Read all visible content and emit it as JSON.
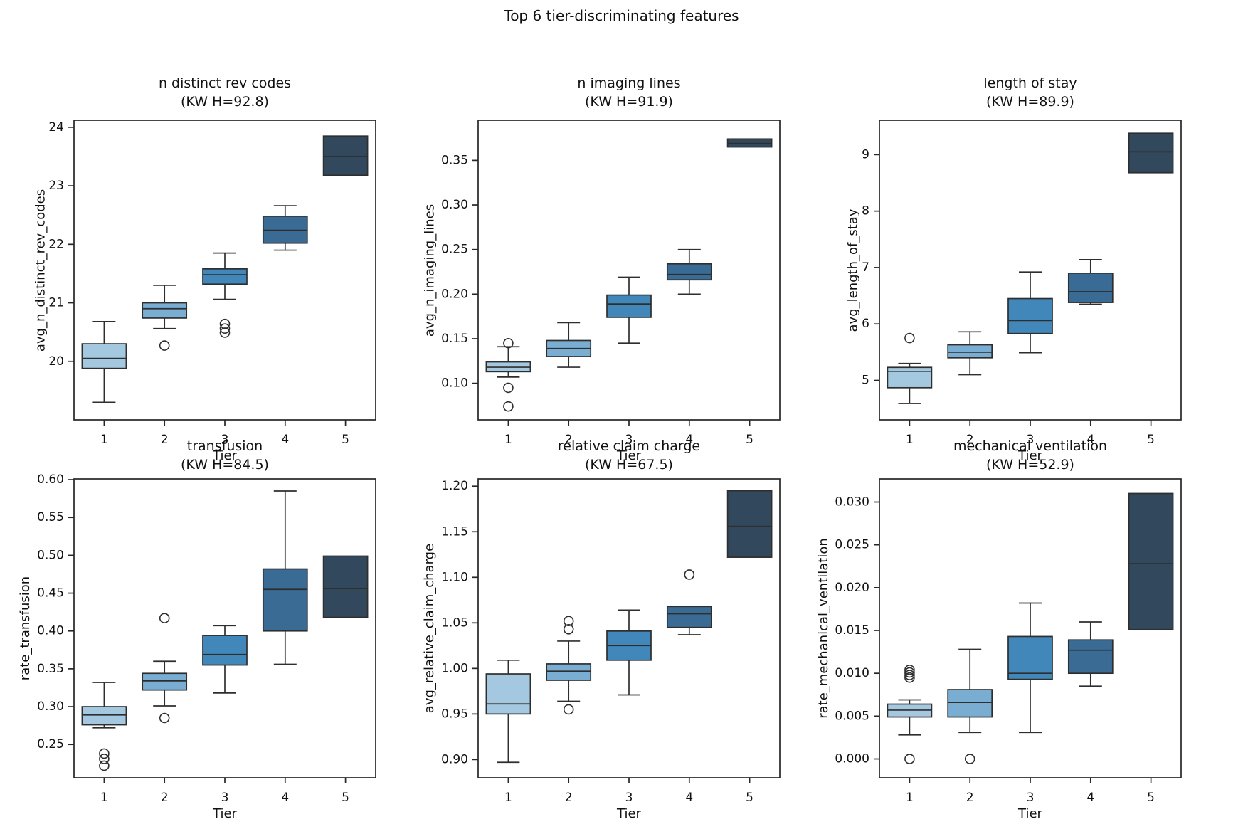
{
  "figure": {
    "title": "Top 6 tier-discriminating features"
  },
  "palette": [
    "#a5c8e1",
    "#79add2",
    "#4287ba",
    "#3a6b94",
    "#32485c"
  ],
  "edge_color": "#2e2e2e",
  "chart_data": [
    {
      "type": "box",
      "title": "n distinct rev codes",
      "subtitle": "(KW H=92.8)",
      "ylabel": "avg_n_distinct_rev_codes",
      "xlabel": "Tier",
      "categories": [
        "1",
        "2",
        "3",
        "4",
        "5"
      ],
      "yticks": [
        20,
        21,
        22,
        23,
        24
      ],
      "ytick_labels": [
        "20",
        "21",
        "22",
        "23",
        "24"
      ],
      "ylim": [
        19.0,
        24.12
      ],
      "boxes": [
        {
          "whislo": 19.3,
          "q1": 19.88,
          "med": 20.05,
          "q3": 20.3,
          "whishi": 20.68,
          "fliers": []
        },
        {
          "whislo": 20.56,
          "q1": 20.74,
          "med": 20.9,
          "q3": 21.0,
          "whishi": 21.3,
          "fliers": [
            20.27
          ]
        },
        {
          "whislo": 21.06,
          "q1": 21.32,
          "med": 21.48,
          "q3": 21.58,
          "whishi": 21.85,
          "fliers": [
            20.64,
            20.56,
            20.49
          ]
        },
        {
          "whislo": 21.9,
          "q1": 22.02,
          "med": 22.24,
          "q3": 22.48,
          "whishi": 22.66,
          "fliers": []
        },
        {
          "whislo": 23.18,
          "q1": 23.18,
          "med": 23.5,
          "q3": 23.85,
          "whishi": 23.85,
          "fliers": []
        }
      ]
    },
    {
      "type": "box",
      "title": "n imaging lines",
      "subtitle": "(KW H=91.9)",
      "ylabel": "avg_n_imaging_lines",
      "xlabel": "Tier",
      "categories": [
        "1",
        "2",
        "3",
        "4",
        "5"
      ],
      "yticks": [
        0.1,
        0.15,
        0.2,
        0.25,
        0.3,
        0.35
      ],
      "ytick_labels": [
        "0.10",
        "0.15",
        "0.20",
        "0.25",
        "0.30",
        "0.35"
      ],
      "ylim": [
        0.059,
        0.395
      ],
      "boxes": [
        {
          "whislo": 0.107,
          "q1": 0.113,
          "med": 0.118,
          "q3": 0.124,
          "whishi": 0.141,
          "fliers": [
            0.145,
            0.095,
            0.074
          ]
        },
        {
          "whislo": 0.118,
          "q1": 0.13,
          "med": 0.139,
          "q3": 0.148,
          "whishi": 0.168,
          "fliers": []
        },
        {
          "whislo": 0.145,
          "q1": 0.174,
          "med": 0.189,
          "q3": 0.199,
          "whishi": 0.219,
          "fliers": []
        },
        {
          "whislo": 0.2,
          "q1": 0.216,
          "med": 0.222,
          "q3": 0.234,
          "whishi": 0.25,
          "fliers": []
        },
        {
          "whislo": 0.365,
          "q1": 0.365,
          "med": 0.369,
          "q3": 0.374,
          "whishi": 0.374,
          "fliers": []
        }
      ]
    },
    {
      "type": "box",
      "title": "length of stay",
      "subtitle": "(KW H=89.9)",
      "ylabel": "avg_length_of_stay",
      "xlabel": "Tier",
      "categories": [
        "1",
        "2",
        "3",
        "4",
        "5"
      ],
      "yticks": [
        5,
        6,
        7,
        8,
        9
      ],
      "ytick_labels": [
        "5",
        "6",
        "7",
        "8",
        "9"
      ],
      "ylim": [
        4.3,
        9.61
      ],
      "boxes": [
        {
          "whislo": 4.59,
          "q1": 4.87,
          "med": 5.16,
          "q3": 5.23,
          "whishi": 5.3,
          "fliers": [
            5.75
          ]
        },
        {
          "whislo": 5.1,
          "q1": 5.4,
          "med": 5.5,
          "q3": 5.63,
          "whishi": 5.86,
          "fliers": []
        },
        {
          "whislo": 5.49,
          "q1": 5.83,
          "med": 6.06,
          "q3": 6.45,
          "whishi": 6.92,
          "fliers": []
        },
        {
          "whislo": 6.35,
          "q1": 6.38,
          "med": 6.57,
          "q3": 6.9,
          "whishi": 7.14,
          "fliers": []
        },
        {
          "whislo": 8.68,
          "q1": 8.68,
          "med": 9.05,
          "q3": 9.38,
          "whishi": 9.38,
          "fliers": []
        }
      ]
    },
    {
      "type": "box",
      "title": "transfusion",
      "subtitle": "(KW H=84.5)",
      "ylabel": "rate_transfusion",
      "xlabel": "Tier",
      "categories": [
        "1",
        "2",
        "3",
        "4",
        "5"
      ],
      "yticks": [
        0.25,
        0.3,
        0.35,
        0.4,
        0.45,
        0.5,
        0.55,
        0.6
      ],
      "ytick_labels": [
        "0.25",
        "0.30",
        "0.35",
        "0.40",
        "0.45",
        "0.50",
        "0.55",
        "0.60"
      ],
      "ylim": [
        0.206,
        0.601
      ],
      "boxes": [
        {
          "whislo": 0.272,
          "q1": 0.276,
          "med": 0.289,
          "q3": 0.3,
          "whishi": 0.332,
          "fliers": [
            0.238,
            0.231,
            0.222
          ]
        },
        {
          "whislo": 0.301,
          "q1": 0.322,
          "med": 0.334,
          "q3": 0.344,
          "whishi": 0.36,
          "fliers": [
            0.417,
            0.285
          ]
        },
        {
          "whislo": 0.318,
          "q1": 0.355,
          "med": 0.369,
          "q3": 0.394,
          "whishi": 0.407,
          "fliers": []
        },
        {
          "whislo": 0.356,
          "q1": 0.4,
          "med": 0.455,
          "q3": 0.482,
          "whishi": 0.585,
          "fliers": []
        },
        {
          "whislo": 0.418,
          "q1": 0.418,
          "med": 0.456,
          "q3": 0.499,
          "whishi": 0.499,
          "fliers": []
        }
      ]
    },
    {
      "type": "box",
      "title": "relative claim charge",
      "subtitle": "(KW H=67.5)",
      "ylabel": "avg_relative_claim_charge",
      "xlabel": "Tier",
      "categories": [
        "1",
        "2",
        "3",
        "4",
        "5"
      ],
      "yticks": [
        0.9,
        0.95,
        1.0,
        1.05,
        1.1,
        1.15,
        1.2
      ],
      "ytick_labels": [
        "0.90",
        "0.95",
        "1.00",
        "1.05",
        "1.10",
        "1.15",
        "1.20"
      ],
      "ylim": [
        0.88,
        1.208
      ],
      "boxes": [
        {
          "whislo": 0.897,
          "q1": 0.95,
          "med": 0.961,
          "q3": 0.994,
          "whishi": 1.009,
          "fliers": []
        },
        {
          "whislo": 0.964,
          "q1": 0.987,
          "med": 0.997,
          "q3": 1.005,
          "whishi": 1.03,
          "fliers": [
            1.052,
            1.043,
            0.955
          ]
        },
        {
          "whislo": 0.971,
          "q1": 1.009,
          "med": 1.025,
          "q3": 1.041,
          "whishi": 1.064,
          "fliers": []
        },
        {
          "whislo": 1.037,
          "q1": 1.045,
          "med": 1.06,
          "q3": 1.068,
          "whishi": 1.068,
          "fliers": [
            1.103
          ]
        },
        {
          "whislo": 1.122,
          "q1": 1.122,
          "med": 1.156,
          "q3": 1.195,
          "whishi": 1.195,
          "fliers": []
        }
      ]
    },
    {
      "type": "box",
      "title": "mechanical ventilation",
      "subtitle": "(KW H=52.9)",
      "ylabel": "rate_mechanical_ventilation",
      "xlabel": "Tier",
      "categories": [
        "1",
        "2",
        "3",
        "4",
        "5"
      ],
      "yticks": [
        0.0,
        0.005,
        0.01,
        0.015,
        0.02,
        0.025,
        0.03
      ],
      "ytick_labels": [
        "0.000",
        "0.005",
        "0.010",
        "0.015",
        "0.020",
        "0.025",
        "0.030"
      ],
      "ylim": [
        -0.0022,
        0.0327
      ],
      "boxes": [
        {
          "whislo": 0.0028,
          "q1": 0.0049,
          "med": 0.0057,
          "q3": 0.0064,
          "whishi": 0.0069,
          "fliers": [
            0.0104,
            0.0101,
            0.0098,
            0.0095,
            0.0
          ]
        },
        {
          "whislo": 0.0031,
          "q1": 0.0049,
          "med": 0.0066,
          "q3": 0.0081,
          "whishi": 0.0128,
          "fliers": [
            0.0
          ]
        },
        {
          "whislo": 0.0031,
          "q1": 0.0093,
          "med": 0.01,
          "q3": 0.0143,
          "whishi": 0.0182,
          "fliers": []
        },
        {
          "whislo": 0.0085,
          "q1": 0.01,
          "med": 0.0127,
          "q3": 0.0139,
          "whishi": 0.016,
          "fliers": []
        },
        {
          "whislo": 0.0151,
          "q1": 0.0151,
          "med": 0.0228,
          "q3": 0.031,
          "whishi": 0.031,
          "fliers": []
        }
      ]
    }
  ]
}
